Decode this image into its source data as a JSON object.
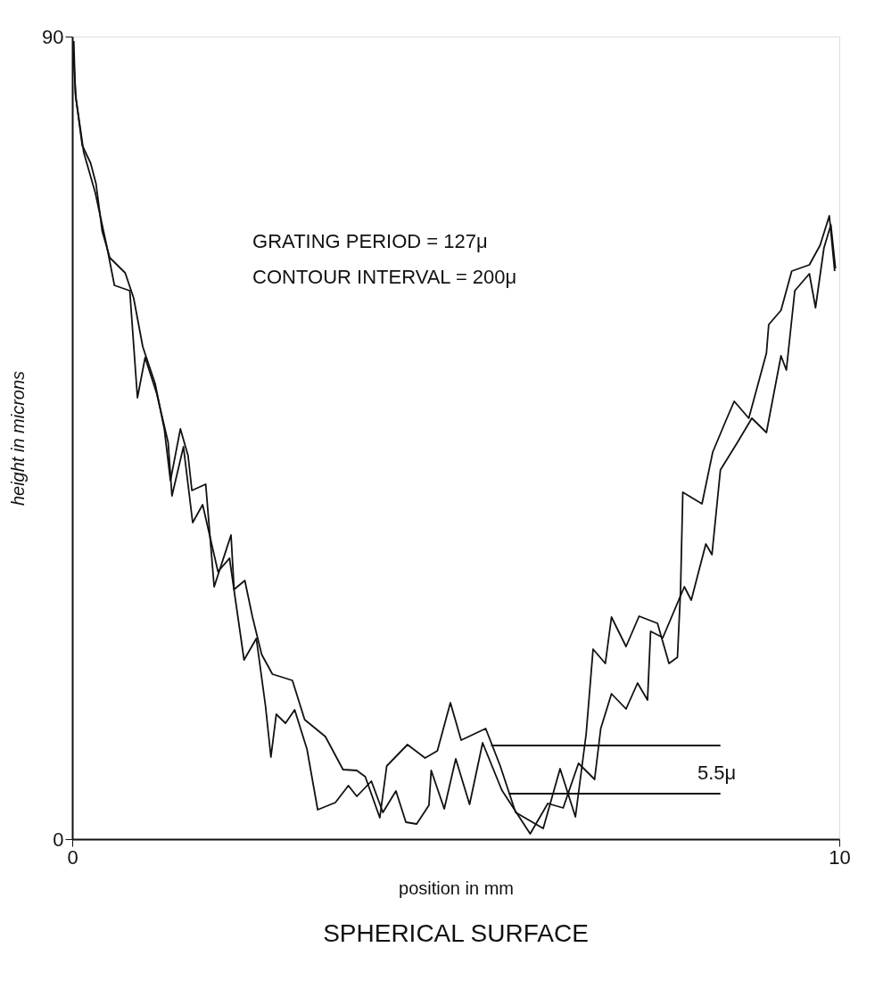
{
  "chart_data": {
    "type": "line",
    "title": "SPHERICAL SURFACE",
    "xlabel": "position in mm",
    "ylabel": "height in microns",
    "xlim": [
      0,
      10
    ],
    "ylim": [
      0,
      90
    ],
    "xticks": [
      0,
      10
    ],
    "yticks": [
      0,
      90
    ],
    "grid": false,
    "line_style": "solid",
    "marker": "none",
    "annotations": [
      "GRATING PERIOD = 127μ",
      "CONTOUR INTERVAL = 200μ",
      "5.5μ"
    ],
    "series": [
      {
        "color": "#111111",
        "x": [
          0.02,
          0.04,
          0.13,
          0.24,
          0.31,
          0.39,
          0.49,
          0.69,
          0.8,
          0.92,
          1.08,
          1.2,
          1.28,
          1.41,
          1.51,
          1.56,
          1.74,
          1.85,
          2.07,
          2.11,
          2.25,
          2.35,
          2.47,
          2.61,
          2.87,
          3.03,
          3.3,
          3.53,
          3.71,
          3.82,
          4.01,
          4.1,
          4.37,
          4.6,
          4.76,
          4.93,
          5.07,
          5.39,
          5.58,
          5.78,
          6.14,
          6.36,
          6.56,
          6.7,
          6.79,
          6.95,
          7.03,
          7.22,
          7.39,
          7.63,
          7.78,
          7.89,
          7.93,
          7.96,
          8.21,
          8.35,
          8.52,
          8.63,
          8.82,
          9.05,
          9.08,
          9.24,
          9.38,
          9.61,
          9.75,
          9.87,
          9.94
        ],
        "values": [
          89.5,
          83.6,
          77.8,
          75.8,
          73.5,
          68.2,
          65.2,
          63.5,
          60.7,
          55.2,
          51.1,
          46.0,
          40.2,
          46.0,
          43.0,
          39.1,
          39.8,
          28.3,
          34.1,
          28.0,
          29.0,
          24.9,
          20.7,
          18.5,
          17.8,
          13.4,
          11.5,
          7.8,
          7.7,
          7.0,
          2.4,
          8.2,
          10.6,
          9.1,
          9.9,
          15.3,
          11.1,
          12.4,
          8.2,
          3.0,
          1.2,
          7.9,
          2.5,
          11.8,
          21.3,
          19.7,
          24.9,
          21.6,
          25.0,
          24.2,
          19.7,
          20.4,
          27.8,
          38.9,
          37.6,
          43.4,
          46.9,
          49.1,
          47.2,
          54.5,
          57.7,
          59.3,
          63.7,
          64.4,
          66.6,
          69.9,
          63.7
        ]
      },
      {
        "color": "#111111",
        "x": [
          0.01,
          0.05,
          0.15,
          0.3,
          0.45,
          0.55,
          0.75,
          0.85,
          0.95,
          1.1,
          1.25,
          1.3,
          1.45,
          1.57,
          1.7,
          1.9,
          2.05,
          2.24,
          2.4,
          2.52,
          2.59,
          2.66,
          2.78,
          2.9,
          3.06,
          3.2,
          3.43,
          3.6,
          3.71,
          3.9,
          4.05,
          4.22,
          4.35,
          4.49,
          4.65,
          4.68,
          4.85,
          5.0,
          5.18,
          5.35,
          5.6,
          5.97,
          6.2,
          6.4,
          6.6,
          6.81,
          6.89,
          7.03,
          7.22,
          7.37,
          7.5,
          7.54,
          7.7,
          7.98,
          8.07,
          8.26,
          8.34,
          8.45,
          8.68,
          8.86,
          9.05,
          9.24,
          9.31,
          9.42,
          9.61,
          9.69,
          9.8,
          9.89,
          9.95
        ],
        "values": [
          88.5,
          83.0,
          77.0,
          72.5,
          66.5,
          62.1,
          61.5,
          49.5,
          54.0,
          50.0,
          44.5,
          38.5,
          44.0,
          35.5,
          37.5,
          30.0,
          31.5,
          20.1,
          22.5,
          14.9,
          9.2,
          14.0,
          13.0,
          14.5,
          10.1,
          3.3,
          4.1,
          6.0,
          4.8,
          6.5,
          3.0,
          5.4,
          1.9,
          1.7,
          3.8,
          7.7,
          3.4,
          9.0,
          3.9,
          10.8,
          5.5,
          0.6,
          4.0,
          3.5,
          8.5,
          6.7,
          12.4,
          16.3,
          14.6,
          17.5,
          15.6,
          23.3,
          22.6,
          28.3,
          26.8,
          33.1,
          31.9,
          41.4,
          44.6,
          47.2,
          45.6,
          54.2,
          52.6,
          61.5,
          63.4,
          59.6,
          66.3,
          68.9,
          64.0
        ]
      },
      {
        "color": "#111111",
        "x": [
          5.46,
          8.45
        ],
        "values": [
          10.5,
          10.5
        ]
      },
      {
        "color": "#111111",
        "x": [
          5.69,
          8.45
        ],
        "values": [
          5.1,
          5.1
        ]
      }
    ]
  }
}
